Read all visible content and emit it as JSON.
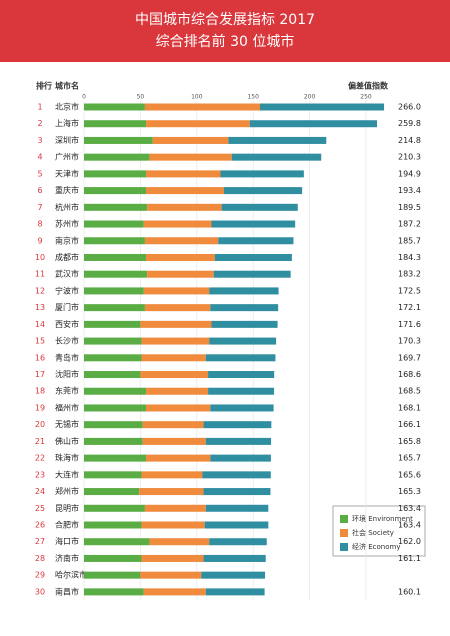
{
  "chart_data": {
    "type": "stacked-bar",
    "title": "中国城市综合发展指标 2017",
    "subtitle": "综合排名前 30 位城市",
    "rank_header": "排行",
    "city_header": "城市名",
    "value_header": "偏差值指数",
    "ranks": [
      1,
      2,
      3,
      4,
      5,
      6,
      7,
      8,
      9,
      10,
      11,
      12,
      13,
      14,
      15,
      16,
      17,
      18,
      19,
      20,
      21,
      22,
      23,
      24,
      25,
      26,
      27,
      28,
      29,
      30
    ],
    "categories": [
      "北京市",
      "上海市",
      "深圳市",
      "广州市",
      "天津市",
      "重庆市",
      "杭州市",
      "苏州市",
      "南京市",
      "成都市",
      "武汉市",
      "宁波市",
      "厦门市",
      "西安市",
      "长沙市",
      "青岛市",
      "沈阳市",
      "东莞市",
      "福州市",
      "无锡市",
      "佛山市",
      "珠海市",
      "大连市",
      "郑州市",
      "昆明市",
      "合肥市",
      "海口市",
      "济南市",
      "哈尔滨市",
      "南昌市"
    ],
    "series": [
      {
        "name": "环境 Environment",
        "color": "#5aac44",
        "values": [
          54,
          55,
          61,
          58,
          55,
          55,
          56,
          53,
          54,
          55,
          56,
          53,
          54,
          50,
          51,
          51,
          50,
          55,
          55,
          52,
          52,
          55,
          51,
          49,
          54,
          51,
          58,
          51,
          50,
          53
        ]
      },
      {
        "name": "社会 Society",
        "color": "#f08a3c",
        "values": [
          102,
          92,
          67,
          73,
          66,
          69,
          66,
          60,
          65,
          61,
          59,
          58,
          58,
          63,
          60,
          57,
          60,
          55,
          57,
          54,
          56,
          57,
          54,
          57,
          54,
          56,
          53,
          55,
          54,
          55
        ]
      },
      {
        "name": "经济 Economy",
        "color": "#2f8ea0",
        "values": [
          110.0,
          112.8,
          86.8,
          79.3,
          73.9,
          69.4,
          67.5,
          74.2,
          66.7,
          68.3,
          68.2,
          61.5,
          60.1,
          58.6,
          59.3,
          61.7,
          58.6,
          58.5,
          56.1,
          60.1,
          57.8,
          53.7,
          60.6,
          59.3,
          55.4,
          56.4,
          51.0,
          55.1,
          56.5,
          52.1
        ]
      }
    ],
    "totals": [
      266.0,
      259.8,
      214.8,
      210.3,
      194.9,
      193.4,
      189.5,
      187.2,
      185.7,
      184.3,
      183.2,
      172.5,
      172.1,
      171.6,
      170.3,
      169.7,
      168.6,
      168.5,
      168.1,
      166.1,
      165.8,
      165.7,
      165.6,
      165.3,
      163.4,
      163.4,
      162.0,
      161.1,
      null,
      160.1
    ],
    "total_labels": [
      "266.0",
      "259.8",
      "214.8",
      "210.3",
      "194.9",
      "193.4",
      "189.5",
      "187.2",
      "185.7",
      "184.3",
      "183.2",
      "172.5",
      "172.1",
      "171.6",
      "170.3",
      "169.7",
      "168.6",
      "168.5",
      "168.1",
      "166.1",
      "165.8",
      "165.7",
      "165.6",
      "165.3",
      "163.4",
      "163.4",
      "162.0",
      "161.1",
      null,
      "160.1"
    ],
    "xlim": [
      0,
      250
    ],
    "xticks": [
      0,
      50,
      100,
      150,
      200,
      250
    ],
    "grid": true
  }
}
